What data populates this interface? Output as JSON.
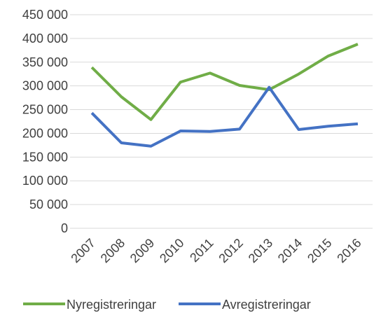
{
  "chart_data": {
    "type": "line",
    "categories": [
      "2007",
      "2008",
      "2009",
      "2010",
      "2011",
      "2012",
      "2013",
      "2014",
      "2015",
      "2016"
    ],
    "series": [
      {
        "name": "Nyregistreringar",
        "color": "#70ad47",
        "values": [
          339000,
          277000,
          229000,
          308000,
          327000,
          301000,
          292000,
          325000,
          363000,
          388000
        ]
      },
      {
        "name": "Avregistreringar",
        "color": "#4472c4",
        "values": [
          243000,
          180000,
          173000,
          205000,
          204000,
          209000,
          297000,
          208000,
          215000,
          220000
        ]
      }
    ],
    "ylim": [
      0,
      450000
    ],
    "yticks": [
      {
        "value": 0,
        "label": "0"
      },
      {
        "value": 50000,
        "label": "50 000"
      },
      {
        "value": 100000,
        "label": "100 000"
      },
      {
        "value": 150000,
        "label": "150 000"
      },
      {
        "value": 200000,
        "label": "200 000"
      },
      {
        "value": 250000,
        "label": "250 000"
      },
      {
        "value": 300000,
        "label": "300 000"
      },
      {
        "value": 350000,
        "label": "350 000"
      },
      {
        "value": 400000,
        "label": "400 000"
      },
      {
        "value": 450000,
        "label": "450 000"
      }
    ],
    "grid": true,
    "legend": "bottom"
  }
}
